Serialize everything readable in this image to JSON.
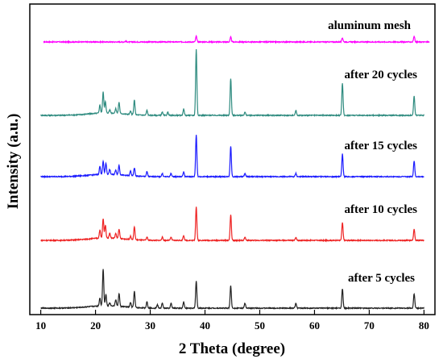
{
  "chart_data": {
    "type": "line",
    "xlabel": "2 Theta (degree)",
    "ylabel": "Intensity (a.u.)",
    "xlim": [
      8,
      82
    ],
    "xticks": [
      10,
      20,
      30,
      40,
      50,
      60,
      70,
      80
    ],
    "y_ticks_shown": false,
    "grid": false,
    "legend": "none (series labelled inline above each trace)",
    "series": [
      {
        "name": "aluminum mesh",
        "color": "#ff00ff",
        "x_start": 10.5,
        "x_end": 81,
        "peaks": [
          {
            "x": 38.4,
            "h": 7
          },
          {
            "x": 44.7,
            "h": 6
          },
          {
            "x": 65.1,
            "h": 5
          },
          {
            "x": 78.2,
            "h": 7
          },
          {
            "x": 25.5,
            "h": 1
          }
        ]
      },
      {
        "name": "after 20 cycles",
        "color": "#2e8b7f",
        "x_start": 10,
        "x_end": 80,
        "peaks": [
          {
            "x": 20.8,
            "h": 10
          },
          {
            "x": 21.4,
            "h": 26
          },
          {
            "x": 21.8,
            "h": 14
          },
          {
            "x": 22.6,
            "h": 4
          },
          {
            "x": 23.7,
            "h": 6
          },
          {
            "x": 24.3,
            "h": 14
          },
          {
            "x": 26.4,
            "h": 4
          },
          {
            "x": 27.1,
            "h": 18
          },
          {
            "x": 29.4,
            "h": 6
          },
          {
            "x": 32.2,
            "h": 4
          },
          {
            "x": 33.2,
            "h": 4
          },
          {
            "x": 36.1,
            "h": 8
          },
          {
            "x": 38.4,
            "h": 82
          },
          {
            "x": 44.7,
            "h": 46
          },
          {
            "x": 47.3,
            "h": 4
          },
          {
            "x": 56.6,
            "h": 6
          },
          {
            "x": 65.1,
            "h": 40
          },
          {
            "x": 78.2,
            "h": 24
          }
        ]
      },
      {
        "name": "after 15 cycles",
        "color": "#1a1aff",
        "x_start": 10,
        "x_end": 80,
        "peaks": [
          {
            "x": 20.8,
            "h": 10
          },
          {
            "x": 21.4,
            "h": 16
          },
          {
            "x": 21.9,
            "h": 14
          },
          {
            "x": 22.6,
            "h": 6
          },
          {
            "x": 23.7,
            "h": 6
          },
          {
            "x": 24.3,
            "h": 12
          },
          {
            "x": 26.4,
            "h": 6
          },
          {
            "x": 27.1,
            "h": 10
          },
          {
            "x": 29.4,
            "h": 6
          },
          {
            "x": 32.2,
            "h": 4
          },
          {
            "x": 33.8,
            "h": 4
          },
          {
            "x": 36.1,
            "h": 6
          },
          {
            "x": 38.4,
            "h": 52
          },
          {
            "x": 44.7,
            "h": 38
          },
          {
            "x": 47.3,
            "h": 4
          },
          {
            "x": 56.6,
            "h": 4
          },
          {
            "x": 65.1,
            "h": 28
          },
          {
            "x": 78.2,
            "h": 20
          }
        ]
      },
      {
        "name": "after 10 cycles",
        "color": "#ee2222",
        "x_start": 10,
        "x_end": 80,
        "peaks": [
          {
            "x": 20.8,
            "h": 10
          },
          {
            "x": 21.4,
            "h": 24
          },
          {
            "x": 21.8,
            "h": 16
          },
          {
            "x": 22.6,
            "h": 6
          },
          {
            "x": 23.7,
            "h": 6
          },
          {
            "x": 24.3,
            "h": 12
          },
          {
            "x": 26.4,
            "h": 4
          },
          {
            "x": 27.1,
            "h": 16
          },
          {
            "x": 29.4,
            "h": 4
          },
          {
            "x": 32.2,
            "h": 4
          },
          {
            "x": 33.8,
            "h": 4
          },
          {
            "x": 36.1,
            "h": 6
          },
          {
            "x": 38.4,
            "h": 42
          },
          {
            "x": 44.7,
            "h": 32
          },
          {
            "x": 47.3,
            "h": 4
          },
          {
            "x": 56.6,
            "h": 4
          },
          {
            "x": 65.1,
            "h": 22
          },
          {
            "x": 78.2,
            "h": 14
          }
        ]
      },
      {
        "name": "after 5 cycles",
        "color": "#222222",
        "x_start": 10,
        "x_end": 80,
        "peaks": [
          {
            "x": 20.8,
            "h": 10
          },
          {
            "x": 21.4,
            "h": 46
          },
          {
            "x": 21.9,
            "h": 14
          },
          {
            "x": 22.6,
            "h": 4
          },
          {
            "x": 23.7,
            "h": 8
          },
          {
            "x": 24.3,
            "h": 16
          },
          {
            "x": 26.4,
            "h": 6
          },
          {
            "x": 27.1,
            "h": 20
          },
          {
            "x": 29.4,
            "h": 8
          },
          {
            "x": 31.3,
            "h": 4
          },
          {
            "x": 32.2,
            "h": 6
          },
          {
            "x": 33.8,
            "h": 6
          },
          {
            "x": 36.1,
            "h": 8
          },
          {
            "x": 38.4,
            "h": 34
          },
          {
            "x": 44.7,
            "h": 28
          },
          {
            "x": 47.3,
            "h": 6
          },
          {
            "x": 56.6,
            "h": 6
          },
          {
            "x": 65.1,
            "h": 24
          },
          {
            "x": 78.2,
            "h": 18
          }
        ]
      }
    ]
  }
}
